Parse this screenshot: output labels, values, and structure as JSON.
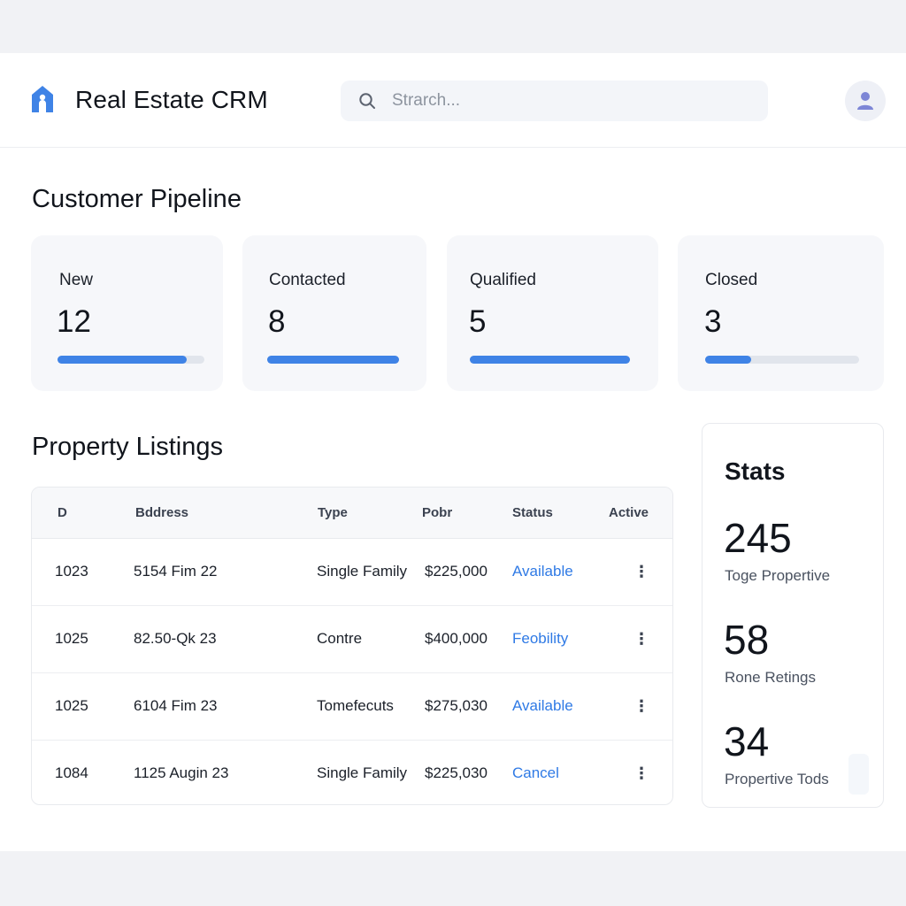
{
  "header": {
    "title": "Real Estate CRM",
    "search_placeholder": "Strarch...",
    "brand_color": "#3f83e6"
  },
  "pipeline": {
    "title": "Customer Pipeline",
    "stages": [
      {
        "label": "New",
        "count": "12",
        "progress": 0.88
      },
      {
        "label": "Contacted",
        "count": "8",
        "progress": 1.0
      },
      {
        "label": "Qualified",
        "count": "5",
        "progress": 1.0
      },
      {
        "label": "Closed",
        "count": "3",
        "progress": 0.3
      }
    ]
  },
  "listings": {
    "title": "Property Listings",
    "columns": [
      "D",
      "Bddress",
      "Type",
      "Pobr",
      "Status",
      "Active"
    ],
    "rows": [
      {
        "id": "1023",
        "address": "5154 Fim 22",
        "type": "Single Family",
        "price": "$225,000",
        "status": "Available",
        "action": "⋮"
      },
      {
        "id": "1025",
        "address": "82.50-Qk 23",
        "type": "Contre",
        "price": "$400,000",
        "status": "Feobility",
        "action": "⋮"
      },
      {
        "id": "1025",
        "address": "6104 Fim 23",
        "type": "Tomefecuts",
        "price": "$275,030",
        "status": "Available",
        "action": "⋮"
      },
      {
        "id": "1084",
        "address": "1125 Augin 23",
        "type": "Single Family",
        "price": "$225,030",
        "status": "Cancel",
        "action": "⋮"
      }
    ]
  },
  "stats": {
    "title": "Stats",
    "items": [
      {
        "value": "245",
        "label": "Toge Propertive"
      },
      {
        "value": "58",
        "label": "Rone Retings"
      },
      {
        "value": "34",
        "label": "Propertive Tods"
      }
    ]
  }
}
